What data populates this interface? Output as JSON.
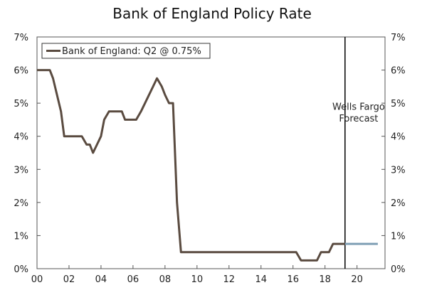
{
  "chart_data": {
    "type": "line",
    "title": "Bank of England Policy Rate",
    "xlabel": "",
    "ylabel": "",
    "xlim": [
      2000,
      2021.75
    ],
    "ylim": [
      0,
      7
    ],
    "x_ticks": [
      {
        "x": 2000,
        "label": "00"
      },
      {
        "x": 2002,
        "label": "02"
      },
      {
        "x": 2004,
        "label": "04"
      },
      {
        "x": 2006,
        "label": "06"
      },
      {
        "x": 2008,
        "label": "08"
      },
      {
        "x": 2010,
        "label": "10"
      },
      {
        "x": 2012,
        "label": "12"
      },
      {
        "x": 2014,
        "label": "14"
      },
      {
        "x": 2016,
        "label": "16"
      },
      {
        "x": 2018,
        "label": "18"
      },
      {
        "x": 2020,
        "label": "20"
      }
    ],
    "y_ticks": [
      {
        "y": 0,
        "label": "0%"
      },
      {
        "y": 1,
        "label": "1%"
      },
      {
        "y": 2,
        "label": "2%"
      },
      {
        "y": 3,
        "label": "3%"
      },
      {
        "y": 4,
        "label": "4%"
      },
      {
        "y": 5,
        "label": "5%"
      },
      {
        "y": 6,
        "label": "6%"
      },
      {
        "y": 7,
        "label": "7%"
      }
    ],
    "series": [
      {
        "name": "Bank of England: Q2 @ 0.75%",
        "color": "#5a4b40",
        "points": [
          [
            2000.0,
            6.0
          ],
          [
            2000.8,
            6.0
          ],
          [
            2001.0,
            5.75
          ],
          [
            2001.25,
            5.25
          ],
          [
            2001.5,
            4.75
          ],
          [
            2001.7,
            4.0
          ],
          [
            2002.8,
            4.0
          ],
          [
            2003.1,
            3.75
          ],
          [
            2003.3,
            3.75
          ],
          [
            2003.5,
            3.5
          ],
          [
            2003.75,
            3.75
          ],
          [
            2004.0,
            4.0
          ],
          [
            2004.2,
            4.5
          ],
          [
            2004.5,
            4.75
          ],
          [
            2005.3,
            4.75
          ],
          [
            2005.5,
            4.5
          ],
          [
            2006.2,
            4.5
          ],
          [
            2006.5,
            4.75
          ],
          [
            2007.25,
            5.5
          ],
          [
            2007.5,
            5.75
          ],
          [
            2007.8,
            5.5
          ],
          [
            2008.0,
            5.25
          ],
          [
            2008.25,
            5.0
          ],
          [
            2008.5,
            5.0
          ],
          [
            2008.75,
            2.0
          ],
          [
            2009.0,
            0.5
          ],
          [
            2016.2,
            0.5
          ],
          [
            2016.5,
            0.25
          ],
          [
            2017.5,
            0.25
          ],
          [
            2017.75,
            0.5
          ],
          [
            2018.25,
            0.5
          ],
          [
            2018.5,
            0.75
          ],
          [
            2019.25,
            0.75
          ]
        ]
      },
      {
        "name": "Wells Fargo Forecast",
        "color": "#7f9fb5",
        "points": [
          [
            2019.25,
            0.75
          ],
          [
            2021.3,
            0.75
          ]
        ]
      }
    ],
    "forecast_line_x": 2019.25,
    "annotations": [
      {
        "text": "Wells Fargo",
        "x": 2020.1,
        "y": 4.8
      },
      {
        "text": "Forecast",
        "x": 2020.1,
        "y": 4.45
      }
    ],
    "legend": {
      "label": "Bank of England: Q2 @ 0.75%",
      "position": "top-left"
    },
    "grid": false
  }
}
